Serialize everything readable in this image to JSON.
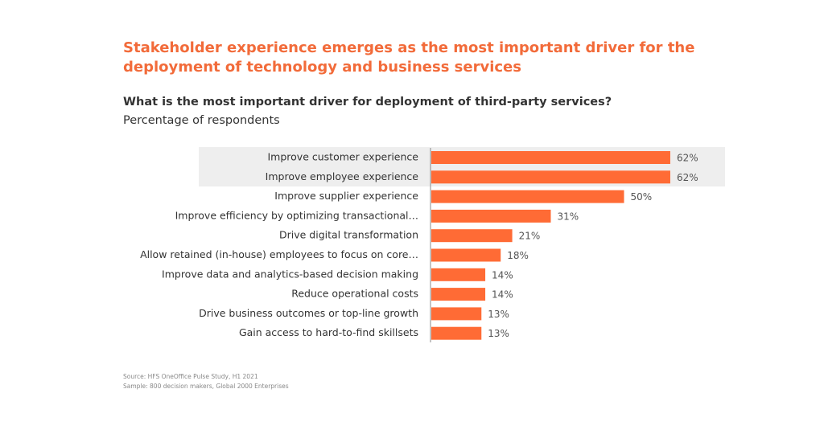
{
  "chart_data": {
    "type": "bar",
    "orientation": "horizontal",
    "title": [
      "Stakeholder experience emerges as the most important driver for the",
      "deployment of technology and business services"
    ],
    "subtitle": "What is the most important driver for deployment of third-party services?",
    "unit_label": "Percentage of respondents",
    "categories": [
      "Improve customer experience",
      "Improve employee experience",
      "Improve supplier experience",
      "Improve efficiency by optimizing transactional…",
      "Drive digital transformation",
      "Allow retained (in-house) employees to focus on core…",
      "Improve data and analytics-based decision making",
      "Reduce operational costs",
      "Drive business outcomes or top-line growth",
      "Gain access to hard-to-find skillsets"
    ],
    "values": [
      62,
      62,
      50,
      31,
      21,
      18,
      14,
      14,
      13,
      13
    ],
    "value_labels": [
      "62%",
      "62%",
      "50%",
      "31%",
      "21%",
      "18%",
      "14%",
      "14%",
      "13%",
      "13%"
    ],
    "color": "#ff6b35",
    "source": [
      "Source: HFS OneOffice Pulse Study, H1 2021",
      "Sample: 800 decision makers, Global 2000 Enterprises"
    ]
  }
}
